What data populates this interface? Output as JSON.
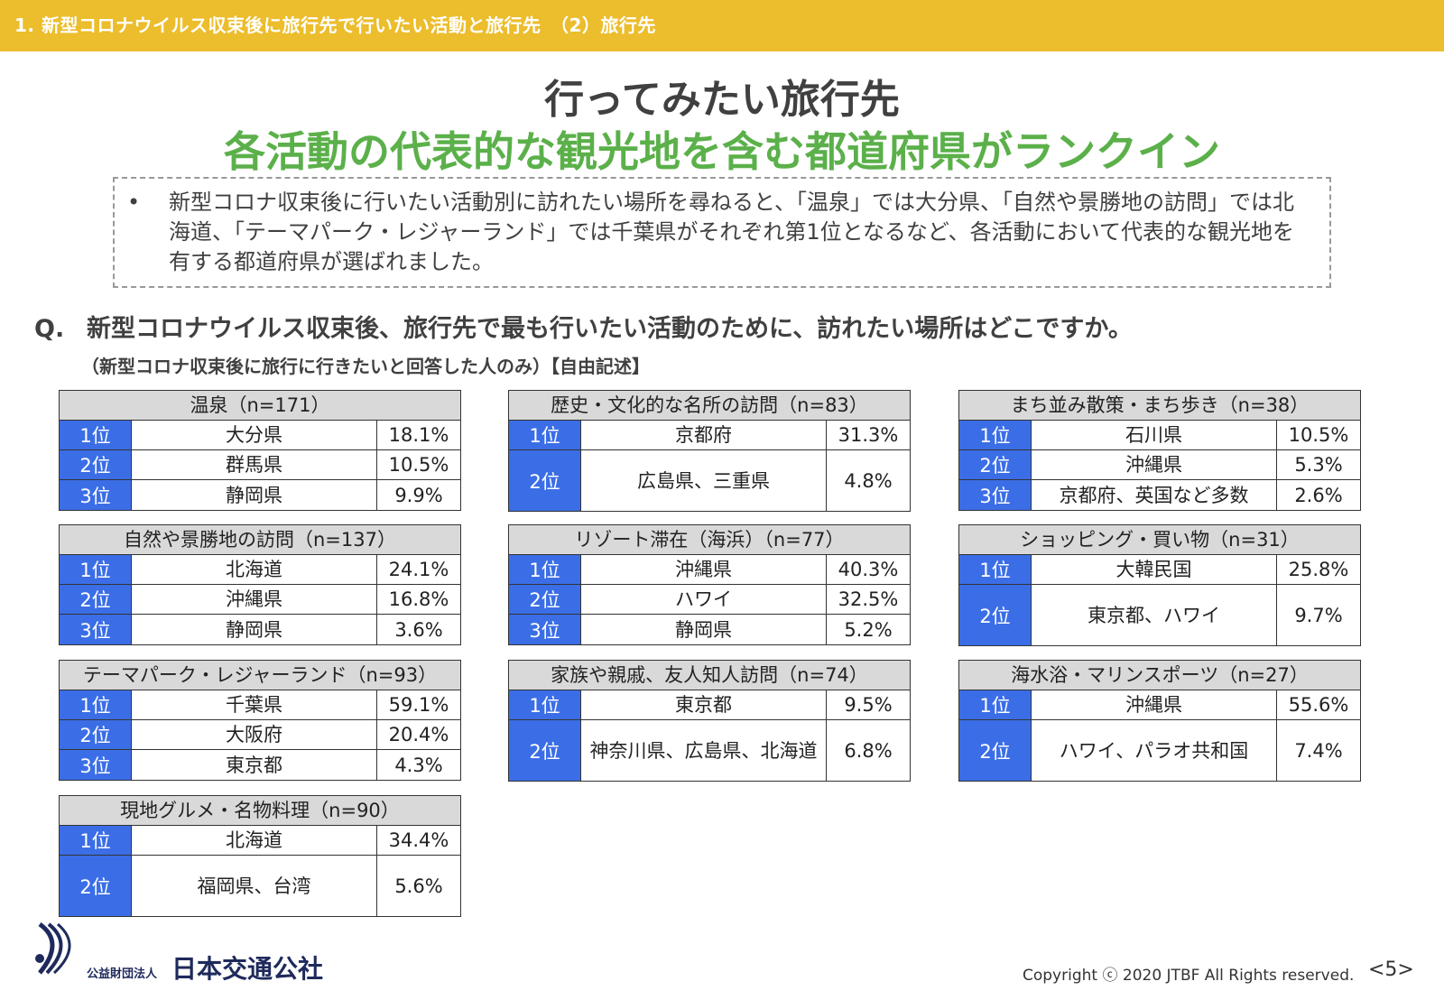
{
  "header": {
    "section": "1.  新型コロナウイルス収束後に旅行先で行いたい活動と旅行先　（2）旅行先"
  },
  "title": {
    "main": "行ってみたい旅行先",
    "sub": "各活動の代表的な観光地を含む都道府県がランクイン"
  },
  "summary": {
    "bullet": "•",
    "text": "新型コロナ収束後に行いたい活動別に訪れたい場所を尋ねると、「温泉」では大分県、「自然や景勝地の訪問」では北海道、「テーマパーク・レジャーランド」では千葉県がそれぞれ第1位となるなど、各活動において代表的な観光地を有する都道府県が選ばれました。"
  },
  "question": {
    "label": "Q.",
    "text": "新型コロナウイルス収束後、旅行先で最も行いたい活動のために、訪れたい場所はどこですか。",
    "note": "（新型コロナ収束後に旅行に行きたいと回答した人のみ）【自由記述】"
  },
  "colors": {
    "header_bar": "#ecbd2c",
    "title_green": "#5bb04a",
    "rank_blue": "#3b6ee6",
    "table_header": "#d9d9d9"
  },
  "tables": [
    {
      "title": "温泉（n=171）",
      "rows": [
        {
          "rank": "1位",
          "place": "大分県",
          "pct": "18.1%"
        },
        {
          "rank": "2位",
          "place": "群馬県",
          "pct": "10.5%"
        },
        {
          "rank": "3位",
          "place": "静岡県",
          "pct": "9.9%"
        }
      ]
    },
    {
      "title": "歴史・文化的な名所の訪問（n=83）",
      "rows": [
        {
          "rank": "1位",
          "place": "京都府",
          "pct": "31.3%"
        },
        {
          "rank": "2位",
          "place": "広島県、三重県",
          "pct": "4.8%",
          "tall": true
        }
      ]
    },
    {
      "title": "まち並み散策・まち歩き（n=38）",
      "rows": [
        {
          "rank": "1位",
          "place": "石川県",
          "pct": "10.5%"
        },
        {
          "rank": "2位",
          "place": "沖縄県",
          "pct": "5.3%"
        },
        {
          "rank": "3位",
          "place": "京都府、英国など多数",
          "pct": "2.6%"
        }
      ]
    },
    {
      "title": "自然や景勝地の訪問（n=137）",
      "rows": [
        {
          "rank": "1位",
          "place": "北海道",
          "pct": "24.1%"
        },
        {
          "rank": "2位",
          "place": "沖縄県",
          "pct": "16.8%"
        },
        {
          "rank": "3位",
          "place": "静岡県",
          "pct": "3.6%"
        }
      ]
    },
    {
      "title": "リゾート滞在（海浜）（n=77）",
      "rows": [
        {
          "rank": "1位",
          "place": "沖縄県",
          "pct": "40.3%"
        },
        {
          "rank": "2位",
          "place": "ハワイ",
          "pct": "32.5%"
        },
        {
          "rank": "3位",
          "place": "静岡県",
          "pct": "5.2%"
        }
      ]
    },
    {
      "title": "ショッピング・買い物（n=31）",
      "rows": [
        {
          "rank": "1位",
          "place": "大韓民国",
          "pct": "25.8%"
        },
        {
          "rank": "2位",
          "place": "東京都、ハワイ",
          "pct": "9.7%",
          "tall": true
        }
      ]
    },
    {
      "title": "テーマパーク・レジャーランド（n=93）",
      "rows": [
        {
          "rank": "1位",
          "place": "千葉県",
          "pct": "59.1%"
        },
        {
          "rank": "2位",
          "place": "大阪府",
          "pct": "20.4%"
        },
        {
          "rank": "3位",
          "place": "東京都",
          "pct": "4.3%"
        }
      ]
    },
    {
      "title": "家族や親戚、友人知人訪問（n=74）",
      "rows": [
        {
          "rank": "1位",
          "place": "東京都",
          "pct": "9.5%"
        },
        {
          "rank": "2位",
          "place": "神奈川県、広島県、北海道",
          "pct": "6.8%",
          "tall": true
        }
      ]
    },
    {
      "title": "海水浴・マリンスポーツ（n=27）",
      "rows": [
        {
          "rank": "1位",
          "place": "沖縄県",
          "pct": "55.6%"
        },
        {
          "rank": "2位",
          "place": "ハワイ、パラオ共和国",
          "pct": "7.4%",
          "tall": true
        }
      ]
    },
    {
      "title": "現地グルメ・名物料理（n=90）",
      "rows": [
        {
          "rank": "1位",
          "place": "北海道",
          "pct": "34.4%"
        },
        {
          "rank": "2位",
          "place": "福岡県、台湾",
          "pct": "5.6%",
          "tall": true
        }
      ]
    }
  ],
  "footer": {
    "org_type": "公益財団法人",
    "org_name": "日本交通公社",
    "copyright": "Copyright ⓒ 2020 JTBF All Rights reserved.",
    "page": "<5>"
  }
}
